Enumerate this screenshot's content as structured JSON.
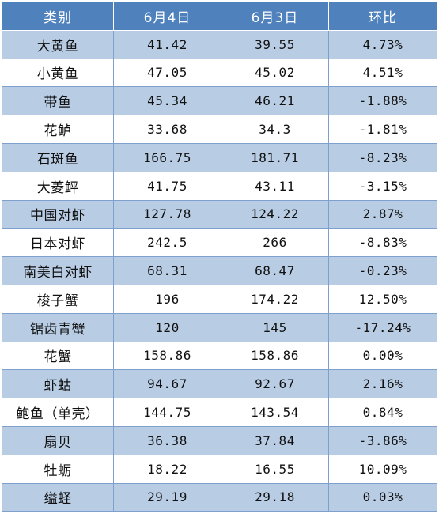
{
  "table": {
    "headers": [
      "类别",
      "6月4日",
      "6月3日",
      "环比"
    ],
    "rows": [
      [
        "大黄鱼",
        "41.42",
        "39.55",
        "4.73%"
      ],
      [
        "小黄鱼",
        "47.05",
        "45.02",
        "4.51%"
      ],
      [
        "带鱼",
        "45.34",
        "46.21",
        "-1.88%"
      ],
      [
        "花鲈",
        "33.68",
        "34.3",
        "-1.81%"
      ],
      [
        "石斑鱼",
        "166.75",
        "181.71",
        "-8.23%"
      ],
      [
        "大菱鲆",
        "41.75",
        "43.11",
        "-3.15%"
      ],
      [
        "中国对虾",
        "127.78",
        "124.22",
        "2.87%"
      ],
      [
        "日本对虾",
        "242.5",
        "266",
        "-8.83%"
      ],
      [
        "南美白对虾",
        "68.31",
        "68.47",
        "-0.23%"
      ],
      [
        "梭子蟹",
        "196",
        "174.22",
        "12.50%"
      ],
      [
        "锯齿青蟹",
        "120",
        "145",
        "-17.24%"
      ],
      [
        "花蟹",
        "158.86",
        "158.86",
        "0.00%"
      ],
      [
        "虾蛄",
        "94.67",
        "92.67",
        "2.16%"
      ],
      [
        "鲍鱼（单壳）",
        "144.75",
        "143.54",
        "0.84%"
      ],
      [
        "扇贝",
        "36.38",
        "37.84",
        "-3.86%"
      ],
      [
        "牡蛎",
        "18.22",
        "16.55",
        "10.09%"
      ],
      [
        "缢蛏",
        "29.19",
        "29.18",
        "0.03%"
      ]
    ]
  },
  "colors": {
    "header_bg": "#4f81bd",
    "shaded_row_bg": "#b8cce4",
    "plain_row_bg": "#ffffff",
    "border": "#7f9fcf"
  }
}
